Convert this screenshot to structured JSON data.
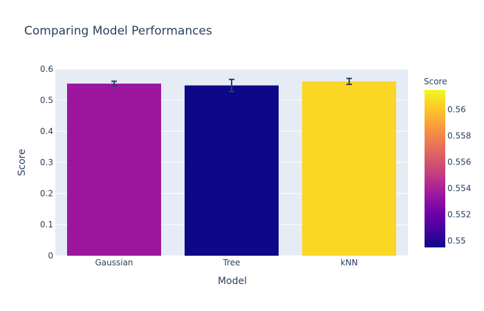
{
  "chart_data": {
    "type": "bar",
    "title": "Comparing Model Performances",
    "xlabel": "Model",
    "ylabel": "Score",
    "categories": [
      "Gaussian",
      "Tree",
      "kNN"
    ],
    "values": [
      0.5535,
      0.5475,
      0.5605
    ],
    "error": [
      0.0075,
      0.0195,
      0.0095
    ],
    "ylim": [
      0,
      0.6
    ],
    "yticks": [
      0,
      0.1,
      0.2,
      0.3,
      0.4,
      0.5,
      0.6
    ],
    "ytick_labels": [
      "0",
      "0.1",
      "0.2",
      "0.3",
      "0.4",
      "0.5",
      "0.6"
    ],
    "grid": true,
    "plot_background": "#e5ecf6",
    "error_bar_color": "#2a3f5f",
    "colorbar": {
      "title": "Score",
      "range": [
        0.5495,
        0.5615
      ],
      "ticks": [
        0.55,
        0.552,
        0.554,
        0.556,
        0.558,
        0.56
      ],
      "tick_labels": [
        "0.55",
        "0.552",
        "0.554",
        "0.556",
        "0.558",
        "0.56"
      ],
      "colorscale": [
        "#0d0887",
        "#46039f",
        "#7201a8",
        "#9c179e",
        "#bd3786",
        "#d8576b",
        "#ed7953",
        "#fb9f3a",
        "#fdca26",
        "#f0f921"
      ]
    }
  }
}
